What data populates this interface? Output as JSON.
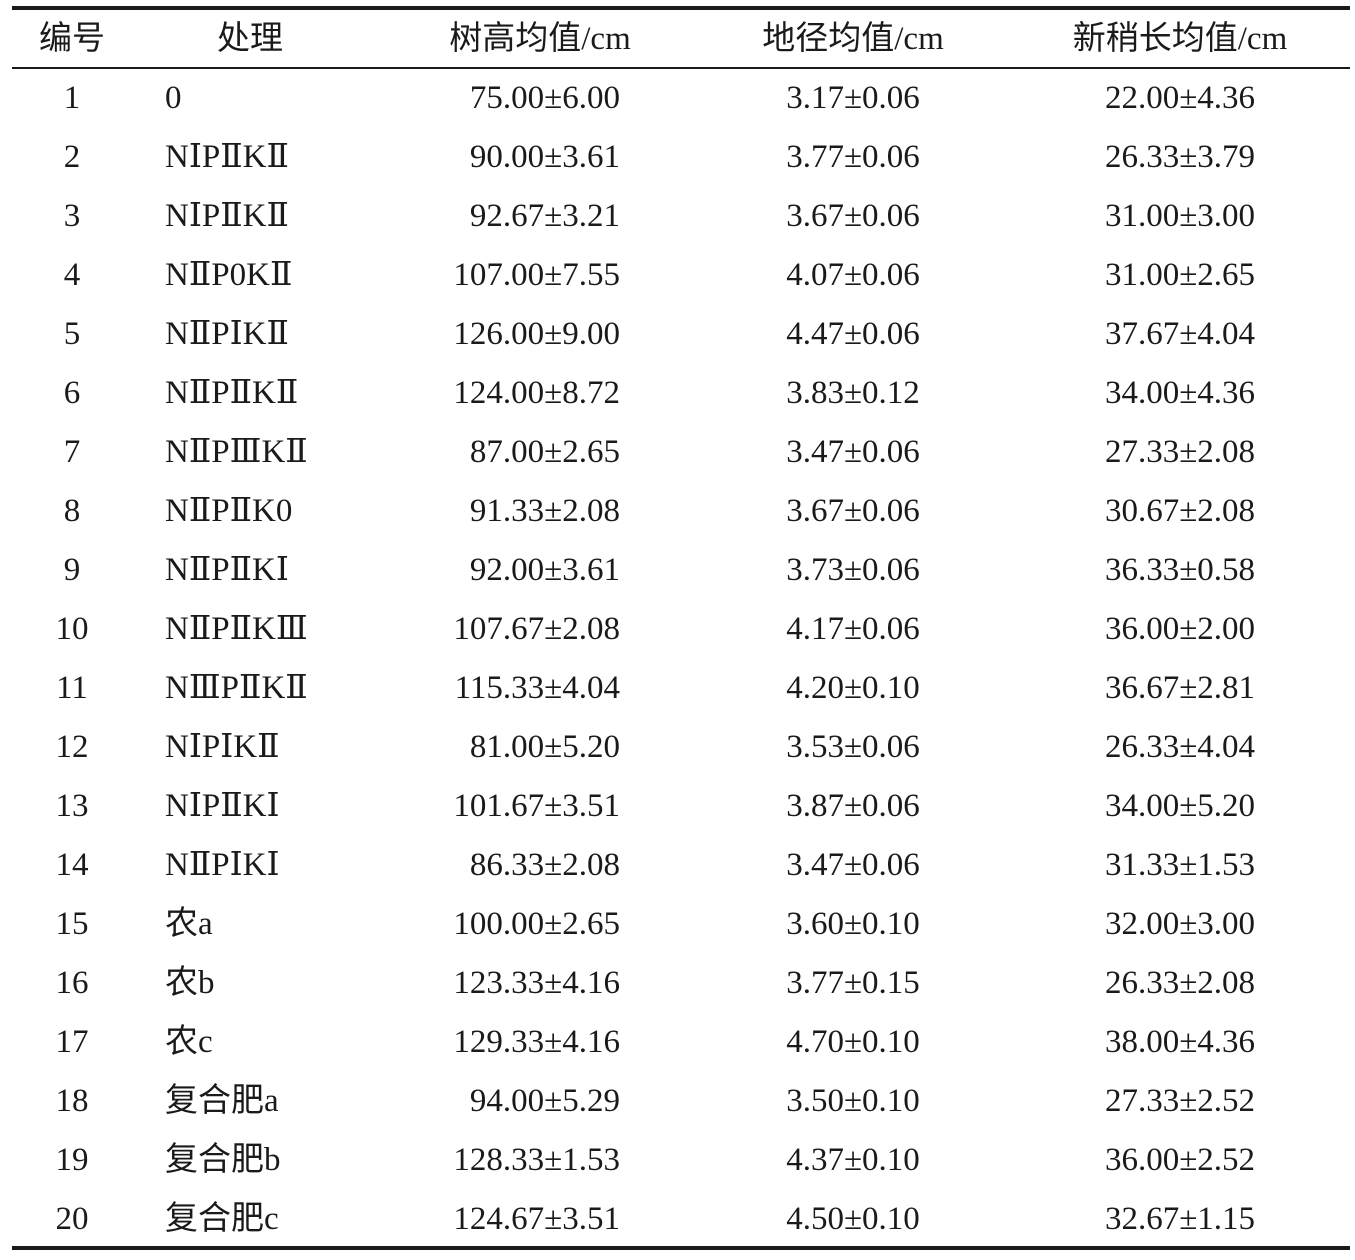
{
  "table": {
    "headers": [
      "编号",
      "处理",
      "树高均值/cm",
      "地径均值/cm",
      "新稍长均值/cm"
    ],
    "rows": [
      [
        "1",
        "0",
        "75.00±6.00",
        "3.17±0.06",
        "22.00±4.36"
      ],
      [
        "2",
        "NⅠPⅡKⅡ",
        "90.00±3.61",
        "3.77±0.06",
        "26.33±3.79"
      ],
      [
        "3",
        "NⅠPⅡKⅡ",
        "92.67±3.21",
        "3.67±0.06",
        "31.00±3.00"
      ],
      [
        "4",
        "NⅡP0KⅡ",
        "107.00±7.55",
        "4.07±0.06",
        "31.00±2.65"
      ],
      [
        "5",
        "NⅡPⅠKⅡ",
        "126.00±9.00",
        "4.47±0.06",
        "37.67±4.04"
      ],
      [
        "6",
        "NⅡPⅡKⅡ",
        "124.00±8.72",
        "3.83±0.12",
        "34.00±4.36"
      ],
      [
        "7",
        "NⅡPⅢKⅡ",
        "87.00±2.65",
        "3.47±0.06",
        "27.33±2.08"
      ],
      [
        "8",
        "NⅡPⅡK0",
        "91.33±2.08",
        "3.67±0.06",
        "30.67±2.08"
      ],
      [
        "9",
        "NⅡPⅡKⅠ",
        "92.00±3.61",
        "3.73±0.06",
        "36.33±0.58"
      ],
      [
        "10",
        "NⅡPⅡKⅢ",
        "107.67±2.08",
        "4.17±0.06",
        "36.00±2.00"
      ],
      [
        "11",
        "NⅢPⅡKⅡ",
        "115.33±4.04",
        "4.20±0.10",
        "36.67±2.81"
      ],
      [
        "12",
        "NⅠPⅠKⅡ",
        "81.00±5.20",
        "3.53±0.06",
        "26.33±4.04"
      ],
      [
        "13",
        "NⅠPⅡKⅠ",
        "101.67±3.51",
        "3.87±0.06",
        "34.00±5.20"
      ],
      [
        "14",
        "NⅡPⅠKⅠ",
        "86.33±2.08",
        "3.47±0.06",
        "31.33±1.53"
      ],
      [
        "15",
        "农a",
        "100.00±2.65",
        "3.60±0.10",
        "32.00±3.00"
      ],
      [
        "16",
        "农b",
        "123.33±4.16",
        "3.77±0.15",
        "26.33±2.08"
      ],
      [
        "17",
        "农c",
        "129.33±4.16",
        "4.70±0.10",
        "38.00±4.36"
      ],
      [
        "18",
        "复合肥a",
        "94.00±5.29",
        "3.50±0.10",
        "27.33±2.52"
      ],
      [
        "19",
        "复合肥b",
        "128.33±1.53",
        "4.37±0.10",
        "36.00±2.52"
      ],
      [
        "20",
        "复合肥c",
        "124.67±3.51",
        "4.50±0.10",
        "32.67±1.15"
      ]
    ]
  }
}
